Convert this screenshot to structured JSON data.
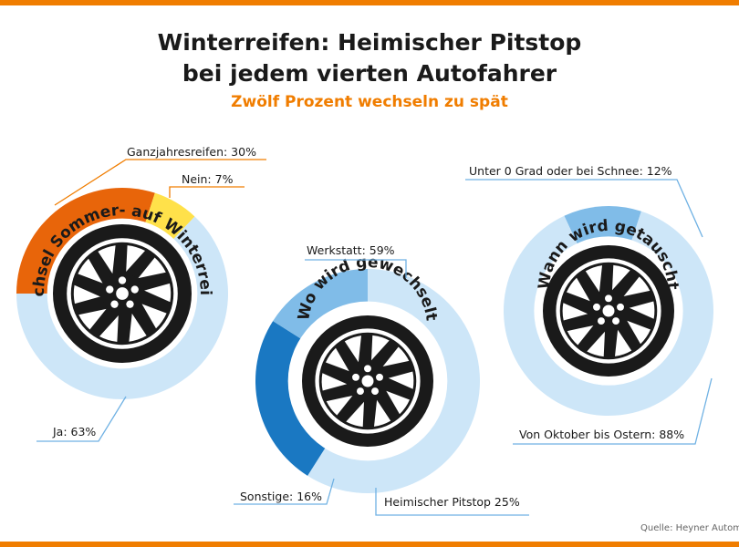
{
  "header": {
    "title_line1": "Winterreifen: Heimischer Pitstop",
    "title_line2": "bei jedem vierten Autofahrer",
    "subtitle": "Zwölf Prozent wechseln zu spät"
  },
  "source": "Quelle: Heyner Automotive",
  "colors": {
    "accent": "#f07d00",
    "orange": "#e8650a",
    "yellow": "#ffe14a",
    "light_blue": "#cde6f8",
    "mid_blue": "#80bce8",
    "dark_blue": "#1a78c2",
    "leader": "#f07d00",
    "leader_blue": "#6fb1e3",
    "wheel": "#1a1a1a"
  },
  "chart_data": [
    {
      "type": "pie",
      "title": "Wechsel Sommer- auf Winterreifen",
      "slices": [
        {
          "label": "Ganzjahresreifen: 30%",
          "value": 30,
          "color": "#e8650a"
        },
        {
          "label": "Nein: 7%",
          "value": 7,
          "color": "#ffe14a"
        },
        {
          "label": "Ja: 63%",
          "value": 63,
          "color": "#cde6f8"
        }
      ]
    },
    {
      "type": "pie",
      "title": "Wo wird gewechselt",
      "slices": [
        {
          "label": "Werkstatt: 59%",
          "value": 59,
          "color": "#cde6f8"
        },
        {
          "label": "Heimischer Pitstop 25%",
          "value": 25,
          "color": "#1a78c2"
        },
        {
          "label": "Sonstige: 16%",
          "value": 16,
          "color": "#80bce8"
        }
      ]
    },
    {
      "type": "pie",
      "title": "Wann wird getauscht",
      "slices": [
        {
          "label": "Unter 0 Grad oder bei Schnee: 12%",
          "value": 12,
          "color": "#80bce8"
        },
        {
          "label": "Von Oktober bis Ostern: 88%",
          "value": 88,
          "color": "#cde6f8"
        }
      ]
    }
  ]
}
